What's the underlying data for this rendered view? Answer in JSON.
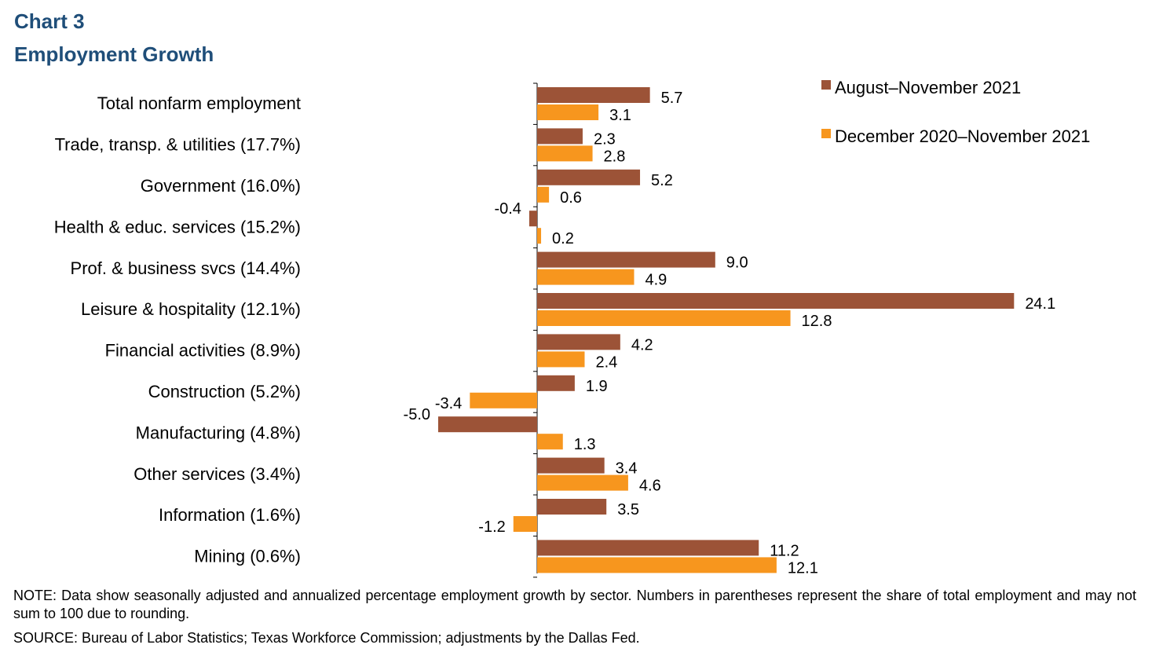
{
  "heading": {
    "chart_label": "Chart 3",
    "title": "Employment Growth"
  },
  "colors": {
    "series1": "#9c5337",
    "series2": "#f7961e",
    "title": "#1f4e79"
  },
  "chart_data": {
    "type": "bar",
    "orientation": "horizontal",
    "title": "Employment Growth",
    "categories": [
      "Total nonfarm employment",
      "Trade, transp. & utilities (17.7%)",
      "Government (16.0%)",
      "Health & educ. services (15.2%)",
      "Prof. & business svcs (14.4%)",
      "Leisure & hospitality (12.1%)",
      "Financial activities (8.9%)",
      "Construction (5.2%)",
      "Manufacturing (4.8%)",
      "Other services (3.4%)",
      "Information (1.6%)",
      "Mining (0.6%)"
    ],
    "series": [
      {
        "name": "August–November 2021",
        "values": [
          5.7,
          2.3,
          5.2,
          -0.4,
          9.0,
          24.1,
          4.2,
          1.9,
          -5.0,
          3.4,
          3.5,
          11.2
        ],
        "labels": [
          "5.7",
          "2.3",
          "5.2",
          "-0.4",
          "9.0",
          "24.1",
          "4.2",
          "1.9",
          "-5.0",
          "3.4",
          "3.5",
          "11.2"
        ]
      },
      {
        "name": "December 2020–November 2021",
        "values": [
          3.1,
          2.8,
          0.6,
          0.2,
          4.9,
          12.8,
          2.4,
          -3.4,
          1.3,
          4.6,
          -1.2,
          12.1
        ],
        "labels": [
          "3.1",
          "2.8",
          "0.6",
          "0.2",
          "4.9",
          "12.8",
          "2.4",
          "-3.4",
          "1.3",
          "4.6",
          "-1.2",
          "12.1"
        ]
      }
    ],
    "xlim": [
      -5.0,
      24.1
    ],
    "grid": false,
    "legend": "top-right"
  },
  "notes": {
    "note": "NOTE: Data show seasonally adjusted and annualized percentage employment growth by sector. Numbers in parentheses represent the share of total employment and may not sum to 100 due to rounding.",
    "source": "SOURCE: Bureau of Labor Statistics; Texas Workforce Commission; adjustments by the Dallas Fed."
  }
}
